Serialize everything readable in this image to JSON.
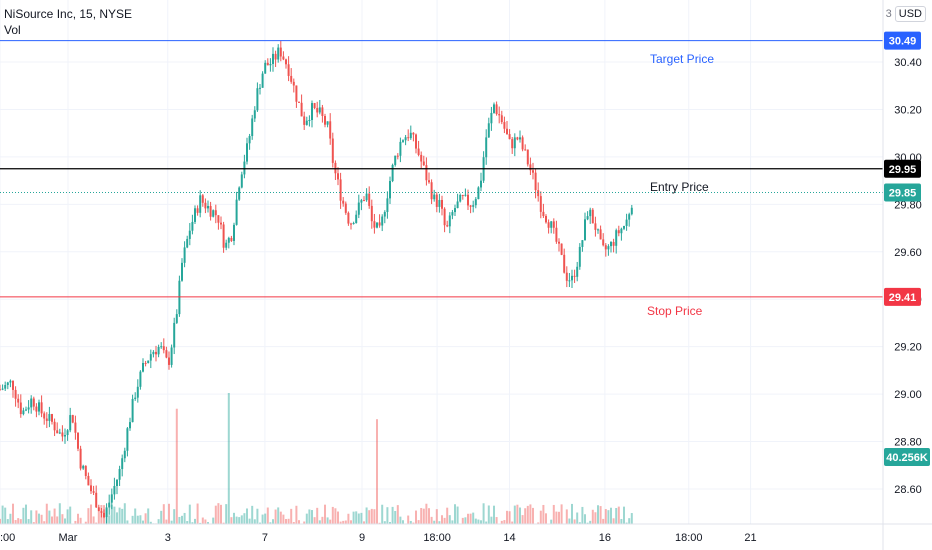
{
  "header": {
    "title": "NiSource Inc, 15, NYSE",
    "indicator": "Vol",
    "scale_number": "3",
    "currency": "USD"
  },
  "chart_data": {
    "type": "candlestick",
    "symbol": "NiSource Inc",
    "interval": "15",
    "exchange": "NYSE",
    "currency": "USD",
    "ylim": [
      28.45,
      30.6
    ],
    "y_ticks": [
      "30.40",
      "30.20",
      "30.00",
      "29.80",
      "29.60",
      "29.40",
      "29.20",
      "29.00",
      "28.80",
      "28.60"
    ],
    "x_ticks": [
      {
        "label": ":00",
        "pos": 0.0
      },
      {
        "label": "Mar",
        "pos": 0.077
      },
      {
        "label": "3",
        "pos": 0.19
      },
      {
        "label": "7",
        "pos": 0.3
      },
      {
        "label": "9",
        "pos": 0.41
      },
      {
        "label": "18:00",
        "pos": 0.495
      },
      {
        "label": "14",
        "pos": 0.577
      },
      {
        "label": "16",
        "pos": 0.685
      },
      {
        "label": "18:00",
        "pos": 0.78
      },
      {
        "label": "21",
        "pos": 0.85
      }
    ],
    "price_levels": [
      {
        "name": "Target Price",
        "value": 30.49,
        "label": "30.49",
        "color": "#2962ff"
      },
      {
        "name": "Entry Price",
        "value": 29.95,
        "label": "29.95",
        "color": "#000000"
      },
      {
        "name": "Stop Price",
        "value": 29.41,
        "label": "29.41",
        "color": "#f23645"
      }
    ],
    "last_price": {
      "value": 29.85,
      "label": "29.85",
      "color": "#26a69a"
    },
    "last_volume": {
      "label": "40.256K",
      "color": "#26a69a"
    },
    "annotations": [
      {
        "text": "Target Price",
        "color": "#2962ff"
      },
      {
        "text": "Entry Price",
        "color": "#131722"
      },
      {
        "text": "Stop Price",
        "color": "#f23645"
      }
    ],
    "path": [
      [
        0,
        29.02
      ],
      [
        12,
        29.05
      ],
      [
        22,
        28.92
      ],
      [
        32,
        28.98
      ],
      [
        42,
        28.92
      ],
      [
        52,
        28.88
      ],
      [
        62,
        28.82
      ],
      [
        72,
        28.92
      ],
      [
        80,
        28.72
      ],
      [
        88,
        28.62
      ],
      [
        96,
        28.55
      ],
      [
        104,
        28.48
      ],
      [
        112,
        28.58
      ],
      [
        120,
        28.68
      ],
      [
        128,
        28.86
      ],
      [
        136,
        29.02
      ],
      [
        144,
        29.12
      ],
      [
        152,
        29.18
      ],
      [
        160,
        29.2
      ],
      [
        168,
        29.12
      ],
      [
        176,
        29.32
      ],
      [
        182,
        29.55
      ],
      [
        190,
        29.7
      ],
      [
        200,
        29.82
      ],
      [
        210,
        29.78
      ],
      [
        218,
        29.75
      ],
      [
        225,
        29.62
      ],
      [
        232,
        29.68
      ],
      [
        240,
        29.92
      ],
      [
        248,
        30.05
      ],
      [
        256,
        30.25
      ],
      [
        264,
        30.38
      ],
      [
        272,
        30.4
      ],
      [
        280,
        30.45
      ],
      [
        288,
        30.38
      ],
      [
        296,
        30.26
      ],
      [
        304,
        30.15
      ],
      [
        312,
        30.2
      ],
      [
        320,
        30.18
      ],
      [
        328,
        30.12
      ],
      [
        334,
        29.95
      ],
      [
        342,
        29.82
      ],
      [
        350,
        29.72
      ],
      [
        358,
        29.78
      ],
      [
        366,
        29.85
      ],
      [
        372,
        29.72
      ],
      [
        380,
        29.68
      ],
      [
        386,
        29.82
      ],
      [
        394,
        29.98
      ],
      [
        402,
        30.08
      ],
      [
        410,
        30.1
      ],
      [
        418,
        30.02
      ],
      [
        426,
        29.92
      ],
      [
        434,
        29.82
      ],
      [
        440,
        29.8
      ],
      [
        446,
        29.68
      ],
      [
        454,
        29.78
      ],
      [
        462,
        29.82
      ],
      [
        472,
        29.8
      ],
      [
        480,
        29.88
      ],
      [
        486,
        30.08
      ],
      [
        494,
        30.22
      ],
      [
        502,
        30.15
      ],
      [
        510,
        30.05
      ],
      [
        518,
        30.08
      ],
      [
        526,
        30.0
      ],
      [
        534,
        29.9
      ],
      [
        542,
        29.78
      ],
      [
        550,
        29.72
      ],
      [
        558,
        29.62
      ],
      [
        566,
        29.5
      ],
      [
        572,
        29.48
      ],
      [
        580,
        29.6
      ],
      [
        588,
        29.78
      ],
      [
        596,
        29.7
      ],
      [
        602,
        29.6
      ],
      [
        610,
        29.62
      ],
      [
        618,
        29.68
      ],
      [
        626,
        29.72
      ],
      [
        634,
        29.85
      ]
    ],
    "volume": {
      "base_range": [
        0.0,
        0.04
      ],
      "spikes": [
        {
          "x": 176,
          "height": 0.22,
          "color": "red"
        },
        {
          "x": 228,
          "height": 0.25,
          "color": "green"
        },
        {
          "x": 378,
          "height": 0.2,
          "color": "red"
        },
        {
          "x": 634,
          "height": 0.1,
          "color": "green"
        }
      ]
    }
  }
}
